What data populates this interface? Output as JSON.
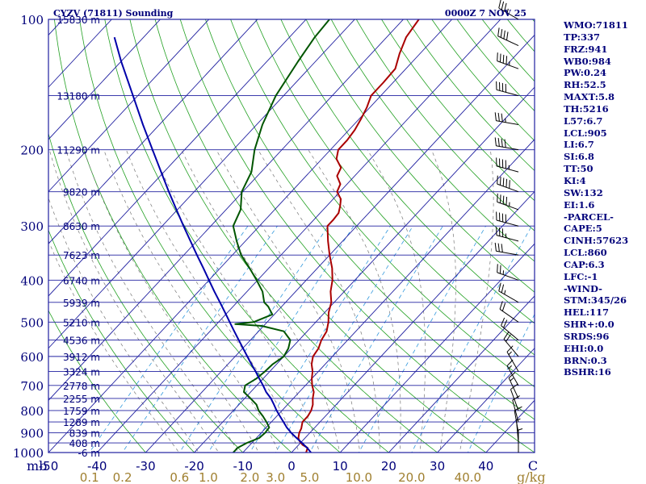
{
  "colors": {
    "isobar": "#2020a0",
    "isotherm": "#2020a0",
    "dry_adiabat": "#22a022",
    "moist_adiabat": "#777777",
    "mixing_ratio": "#3399dd",
    "temperature": "#aa0000",
    "dewpoint": "#005500",
    "parcel": "#0000aa",
    "text": "#00007a",
    "tan": "#a08030"
  },
  "chart_data": {
    "type": "line",
    "title": "CYZV (71811) Sounding",
    "valid_time": "0000Z  7 NOV 25",
    "xlabel": "C",
    "pressure_unit": "mb",
    "mixing_ratio_unit": "g/kg",
    "y_scale": "log",
    "ylim": [
      1000,
      100
    ],
    "xlim": [
      -50,
      50
    ],
    "skew_degrees_per_decade": 83,
    "pressure_levels": [
      100,
      200,
      300,
      400,
      500,
      600,
      700,
      800,
      900,
      1000
    ],
    "temperature_ticks": [
      -50,
      -40,
      -30,
      -20,
      -10,
      0,
      10,
      20,
      30,
      40
    ],
    "mixing_ratio_ticks": [
      {
        "label": "0.1",
        "value": 0.1
      },
      {
        "label": "0.2",
        "value": 0.2
      },
      {
        "label": "0.6",
        "value": 0.6
      },
      {
        "label": "1.0",
        "value": 1.0
      },
      {
        "label": "2.0",
        "value": 2.0
      },
      {
        "label": "3.0",
        "value": 3.0
      },
      {
        "label": "5.0",
        "value": 5.0
      },
      {
        "label": "10.0",
        "value": 10.0
      },
      {
        "label": "20.0",
        "value": 20.0
      },
      {
        "label": "40.0",
        "value": 40.0
      }
    ],
    "height_labels": [
      {
        "label": "15830 m",
        "p": 100
      },
      {
        "label": "13180 m",
        "p": 150
      },
      {
        "label": "11290 m",
        "p": 200
      },
      {
        "label": "9820 m",
        "p": 250
      },
      {
        "label": "8630 m",
        "p": 300
      },
      {
        "label": "7623 m",
        "p": 350
      },
      {
        "label": "6740 m",
        "p": 400
      },
      {
        "label": "5939 m",
        "p": 450
      },
      {
        "label": "5210 m",
        "p": 500
      },
      {
        "label": "4536 m",
        "p": 550
      },
      {
        "label": "3912 m",
        "p": 600
      },
      {
        "label": "3324 m",
        "p": 650
      },
      {
        "label": "2778 m",
        "p": 700
      },
      {
        "label": "2255 m",
        "p": 750
      },
      {
        "label": "1759 m",
        "p": 800
      },
      {
        "label": "1289 m",
        "p": 850
      },
      {
        "label": "839 m",
        "p": 900
      },
      {
        "label": "408 m",
        "p": 950
      },
      {
        "label": "-6 m",
        "p": 1000
      }
    ],
    "series": [
      {
        "key": "temperature",
        "points": [
          [
            1000,
            3.0
          ],
          [
            975,
            2.4
          ],
          [
            960,
            0.8
          ],
          [
            940,
            -0.6
          ],
          [
            925,
            -1.4
          ],
          [
            900,
            -2.2
          ],
          [
            880,
            -2.6
          ],
          [
            850,
            -3.6
          ],
          [
            825,
            -3.6
          ],
          [
            800,
            -4.0
          ],
          [
            775,
            -4.8
          ],
          [
            750,
            -6.0
          ],
          [
            725,
            -7.0
          ],
          [
            700,
            -8.6
          ],
          [
            675,
            -10.0
          ],
          [
            650,
            -11.2
          ],
          [
            625,
            -12.8
          ],
          [
            600,
            -14.0
          ],
          [
            575,
            -14.4
          ],
          [
            550,
            -15.4
          ],
          [
            525,
            -16.0
          ],
          [
            500,
            -17.4
          ],
          [
            475,
            -19.2
          ],
          [
            450,
            -20.6
          ],
          [
            425,
            -22.8
          ],
          [
            400,
            -24.6
          ],
          [
            375,
            -27.0
          ],
          [
            350,
            -30.0
          ],
          [
            325,
            -33.0
          ],
          [
            300,
            -36.0
          ],
          [
            290,
            -36.0
          ],
          [
            280,
            -36.2
          ],
          [
            270,
            -37.2
          ],
          [
            260,
            -38.4
          ],
          [
            250,
            -40.6
          ],
          [
            240,
            -41.4
          ],
          [
            230,
            -43.6
          ],
          [
            220,
            -44.4
          ],
          [
            210,
            -47.0
          ],
          [
            200,
            -48.4
          ],
          [
            190,
            -48.4
          ],
          [
            180,
            -48.8
          ],
          [
            170,
            -49.6
          ],
          [
            160,
            -50.6
          ],
          [
            150,
            -52.0
          ],
          [
            140,
            -52.0
          ],
          [
            130,
            -52.2
          ],
          [
            120,
            -54.2
          ],
          [
            110,
            -56.0
          ],
          [
            100,
            -56.8
          ]
        ]
      },
      {
        "key": "dewpoint",
        "points": [
          [
            1000,
            -12.0
          ],
          [
            975,
            -12.0
          ],
          [
            950,
            -11.0
          ],
          [
            925,
            -9.4
          ],
          [
            900,
            -9.2
          ],
          [
            875,
            -9.4
          ],
          [
            850,
            -11.0
          ],
          [
            825,
            -12.8
          ],
          [
            800,
            -14.8
          ],
          [
            775,
            -16.4
          ],
          [
            750,
            -18.8
          ],
          [
            725,
            -21.4
          ],
          [
            700,
            -22.4
          ],
          [
            675,
            -21.4
          ],
          [
            650,
            -21.0
          ],
          [
            625,
            -20.8
          ],
          [
            600,
            -20.0
          ],
          [
            575,
            -20.6
          ],
          [
            550,
            -21.8
          ],
          [
            525,
            -24.8
          ],
          [
            510,
            -30.4
          ],
          [
            505,
            -36.2
          ],
          [
            500,
            -32.8
          ],
          [
            480,
            -30.4
          ],
          [
            460,
            -32.8
          ],
          [
            450,
            -34.4
          ],
          [
            425,
            -36.8
          ],
          [
            400,
            -40.2
          ],
          [
            375,
            -44.0
          ],
          [
            350,
            -48.2
          ],
          [
            325,
            -51.8
          ],
          [
            300,
            -55.4
          ],
          [
            275,
            -57.0
          ],
          [
            250,
            -60.2
          ],
          [
            225,
            -62.0
          ],
          [
            200,
            -65.6
          ],
          [
            175,
            -68.8
          ],
          [
            150,
            -71.6
          ],
          [
            125,
            -73.6
          ],
          [
            110,
            -74.8
          ],
          [
            100,
            -75.2
          ]
        ]
      },
      {
        "key": "parcel",
        "points": [
          [
            1000,
            4.0
          ],
          [
            975,
            2.3
          ],
          [
            950,
            0.3
          ],
          [
            925,
            -1.8
          ],
          [
            900,
            -3.9
          ],
          [
            875,
            -5.8
          ],
          [
            850,
            -7.5
          ],
          [
            825,
            -9.3
          ],
          [
            800,
            -11.1
          ],
          [
            775,
            -12.8
          ],
          [
            750,
            -14.6
          ],
          [
            725,
            -16.8
          ],
          [
            700,
            -18.7
          ],
          [
            675,
            -20.8
          ],
          [
            650,
            -22.9
          ],
          [
            625,
            -25.2
          ],
          [
            600,
            -27.5
          ],
          [
            575,
            -29.9
          ],
          [
            550,
            -32.4
          ],
          [
            525,
            -35.0
          ],
          [
            500,
            -37.7
          ],
          [
            475,
            -40.5
          ],
          [
            450,
            -43.5
          ],
          [
            425,
            -46.7
          ],
          [
            400,
            -50.0
          ],
          [
            375,
            -53.5
          ],
          [
            350,
            -57.3
          ],
          [
            325,
            -61.3
          ],
          [
            300,
            -65.6
          ],
          [
            275,
            -70.2
          ],
          [
            250,
            -75.2
          ],
          [
            225,
            -80.6
          ],
          [
            200,
            -86.6
          ],
          [
            175,
            -93.4
          ],
          [
            150,
            -101.0
          ],
          [
            125,
            -110.0
          ],
          [
            110,
            -116.0
          ]
        ]
      }
    ],
    "wind_barbs": [
      {
        "p": 100,
        "dir": 300,
        "spd": 35
      },
      {
        "p": 115,
        "dir": 295,
        "spd": 40
      },
      {
        "p": 130,
        "dir": 290,
        "spd": 45
      },
      {
        "p": 150,
        "dir": 285,
        "spd": 40
      },
      {
        "p": 175,
        "dir": 280,
        "spd": 35
      },
      {
        "p": 200,
        "dir": 280,
        "spd": 40
      },
      {
        "p": 225,
        "dir": 285,
        "spd": 45
      },
      {
        "p": 250,
        "dir": 290,
        "spd": 50
      },
      {
        "p": 275,
        "dir": 290,
        "spd": 45
      },
      {
        "p": 300,
        "dir": 285,
        "spd": 40
      },
      {
        "p": 325,
        "dir": 285,
        "spd": 35
      },
      {
        "p": 350,
        "dir": 280,
        "spd": 30
      },
      {
        "p": 400,
        "dir": 290,
        "spd": 25
      },
      {
        "p": 450,
        "dir": 300,
        "spd": 25
      },
      {
        "p": 500,
        "dir": 305,
        "spd": 20
      },
      {
        "p": 550,
        "dir": 310,
        "spd": 20
      },
      {
        "p": 600,
        "dir": 320,
        "spd": 20
      },
      {
        "p": 650,
        "dir": 330,
        "spd": 15
      },
      {
        "p": 700,
        "dir": 330,
        "spd": 15
      },
      {
        "p": 750,
        "dir": 335,
        "spd": 15
      },
      {
        "p": 800,
        "dir": 340,
        "spd": 10
      },
      {
        "p": 850,
        "dir": 345,
        "spd": 10
      },
      {
        "p": 900,
        "dir": 350,
        "spd": 10
      },
      {
        "p": 950,
        "dir": 355,
        "spd": 5
      },
      {
        "p": 1000,
        "dir": 0,
        "spd": 5
      }
    ]
  },
  "sidebar": {
    "items": [
      "WMO:71811",
      "TP:337",
      "FRZ:941",
      "WB0:984",
      "PW:0.24",
      "RH:52.5",
      "MAXT:5.8",
      "TH:5216",
      "L57:6.7",
      "LCL:905",
      "LI:6.7",
      "SI:6.8",
      "TT:50",
      "KI:4",
      "SW:132",
      "EI:1.6",
      "-PARCEL-",
      "CAPE:5",
      "CINH:57623",
      "LCL:860",
      "CAP:6.3",
      "LFC:-1",
      "-WIND-",
      "STM:345/26",
      "HEL:117",
      "SHR+:0.0",
      "SRDS:96",
      "EHI:0.0",
      "BRN:0.3",
      "BSHR:16"
    ]
  }
}
